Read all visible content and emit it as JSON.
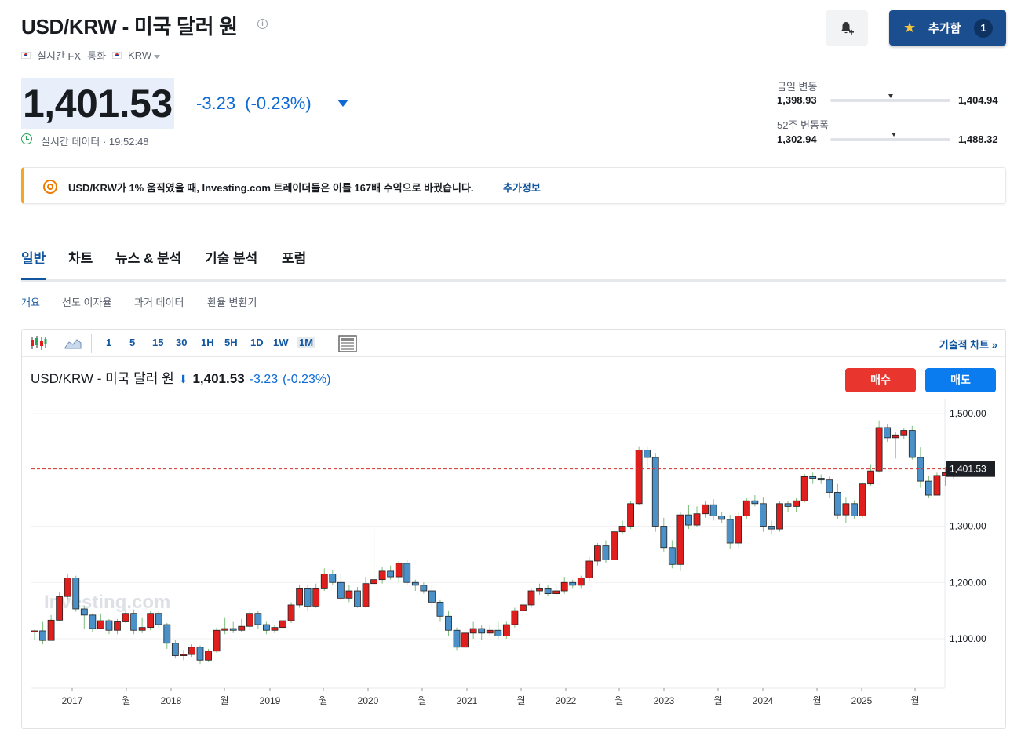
{
  "header": {
    "title": "USD/KRW - 미국 달러 원",
    "info_icon": "i",
    "realtime_fx": "실시간 FX",
    "currency_label": "통화",
    "currency_code": "KRW",
    "watch_label": "추가함",
    "watch_count": "1"
  },
  "quote": {
    "price": "1,401.53",
    "change": "-3.23",
    "change_pct": "(-0.23%)",
    "realtime_text": "실시간 데이터 · 19:52:48"
  },
  "ranges": {
    "day_label": "금일 변동",
    "day_low": "1,398.93",
    "day_high": "1,404.94",
    "day_position": 0.5,
    "week52_label": "52주 변동폭",
    "week52_low": "1,302.94",
    "week52_high": "1,488.32",
    "week52_position": 0.53
  },
  "banner": {
    "text": "USD/KRW가 1% 움직였을 때, Investing.com 트레이더들은 이를 167배 수익으로 바꿨습니다.",
    "link": "추가정보"
  },
  "tabs": [
    "일반",
    "차트",
    "뉴스 & 분석",
    "기술 분석",
    "포럼"
  ],
  "subtabs": [
    "개요",
    "선도 이자율",
    "과거 데이터",
    "환율 변환기"
  ],
  "toolbar": {
    "intervals": [
      "1",
      "5",
      "15",
      "30",
      "1H",
      "5H",
      "1D",
      "1W",
      "1M"
    ],
    "active_interval": "1M",
    "tech_chart_link": "기술적 차트 »"
  },
  "legend": {
    "name": "USD/KRW - 미국 달러 원",
    "price": "1,401.53",
    "change": "-3.23",
    "change_pct": "(-0.23%)"
  },
  "trade": {
    "buy": "매수",
    "sell": "매도"
  },
  "watermark": "Investing.com",
  "colors": {
    "up": "#e01e1e",
    "down": "#4a90c9",
    "accent": "#1256a0",
    "price_line": "#d23030"
  },
  "chart_data": {
    "type": "candlestick",
    "interval": "1M",
    "y_ticks": [
      "1,500.00",
      "1,300.00",
      "1,200.00",
      "1,100.00"
    ],
    "y_tick_values": [
      1500,
      1300,
      1200,
      1100
    ],
    "ylim": [
      1035,
      1540
    ],
    "x_ticks": [
      "2017",
      "월",
      "2018",
      "월",
      "2019",
      "월",
      "2020",
      "월",
      "2021",
      "월",
      "2022",
      "월",
      "2023",
      "월",
      "2024",
      "월",
      "2025",
      "월"
    ],
    "last_price_label": "1,401.53",
    "last_price": 1401.53,
    "x_start": "2016-08",
    "candles": [
      [
        1112,
        1114,
        1098,
        1116
      ],
      [
        1114,
        1097,
        1090,
        1130
      ],
      [
        1097,
        1133,
        1097,
        1142
      ],
      [
        1133,
        1175,
        1132,
        1182
      ],
      [
        1175,
        1208,
        1170,
        1215
      ],
      [
        1208,
        1153,
        1148,
        1212
      ],
      [
        1153,
        1142,
        1118,
        1158
      ],
      [
        1142,
        1118,
        1112,
        1145
      ],
      [
        1118,
        1132,
        1118,
        1145
      ],
      [
        1132,
        1115,
        1108,
        1135
      ],
      [
        1115,
        1130,
        1108,
        1135
      ],
      [
        1130,
        1145,
        1128,
        1152
      ],
      [
        1145,
        1115,
        1108,
        1152
      ],
      [
        1115,
        1120,
        1110,
        1138
      ],
      [
        1120,
        1145,
        1115,
        1150
      ],
      [
        1145,
        1125,
        1120,
        1150
      ],
      [
        1125,
        1092,
        1082,
        1128
      ],
      [
        1092,
        1070,
        1065,
        1098
      ],
      [
        1070,
        1072,
        1062,
        1080
      ],
      [
        1072,
        1085,
        1068,
        1090
      ],
      [
        1085,
        1062,
        1055,
        1088
      ],
      [
        1062,
        1078,
        1060,
        1082
      ],
      [
        1078,
        1115,
        1075,
        1120
      ],
      [
        1115,
        1118,
        1108,
        1138
      ],
      [
        1118,
        1115,
        1110,
        1130
      ],
      [
        1115,
        1122,
        1112,
        1135
      ],
      [
        1122,
        1145,
        1115,
        1150
      ],
      [
        1145,
        1125,
        1118,
        1150
      ],
      [
        1125,
        1115,
        1108,
        1130
      ],
      [
        1115,
        1120,
        1110,
        1125
      ],
      [
        1120,
        1132,
        1115,
        1135
      ],
      [
        1132,
        1160,
        1128,
        1165
      ],
      [
        1160,
        1190,
        1155,
        1195
      ],
      [
        1190,
        1158,
        1150,
        1195
      ],
      [
        1158,
        1190,
        1155,
        1198
      ],
      [
        1190,
        1215,
        1185,
        1225
      ],
      [
        1215,
        1200,
        1195,
        1222
      ],
      [
        1200,
        1172,
        1168,
        1215
      ],
      [
        1172,
        1185,
        1165,
        1195
      ],
      [
        1185,
        1157,
        1155,
        1192
      ],
      [
        1157,
        1198,
        1155,
        1210
      ],
      [
        1198,
        1205,
        1195,
        1295
      ],
      [
        1205,
        1220,
        1198,
        1228
      ],
      [
        1220,
        1210,
        1205,
        1230
      ],
      [
        1210,
        1234,
        1200,
        1238
      ],
      [
        1234,
        1200,
        1195,
        1240
      ],
      [
        1200,
        1195,
        1185,
        1205
      ],
      [
        1195,
        1185,
        1180,
        1200
      ],
      [
        1185,
        1165,
        1155,
        1195
      ],
      [
        1165,
        1140,
        1130,
        1170
      ],
      [
        1140,
        1115,
        1105,
        1150
      ],
      [
        1115,
        1085,
        1080,
        1120
      ],
      [
        1085,
        1110,
        1082,
        1120
      ],
      [
        1110,
        1118,
        1100,
        1130
      ],
      [
        1118,
        1110,
        1098,
        1125
      ],
      [
        1110,
        1115,
        1105,
        1125
      ],
      [
        1115,
        1105,
        1100,
        1130
      ],
      [
        1105,
        1125,
        1100,
        1130
      ],
      [
        1125,
        1150,
        1120,
        1155
      ],
      [
        1150,
        1160,
        1140,
        1165
      ],
      [
        1160,
        1185,
        1155,
        1190
      ],
      [
        1185,
        1190,
        1178,
        1198
      ],
      [
        1190,
        1180,
        1175,
        1195
      ],
      [
        1180,
        1185,
        1175,
        1195
      ],
      [
        1185,
        1200,
        1180,
        1210
      ],
      [
        1200,
        1195,
        1190,
        1205
      ],
      [
        1195,
        1208,
        1190,
        1212
      ],
      [
        1208,
        1238,
        1202,
        1245
      ],
      [
        1238,
        1265,
        1230,
        1270
      ],
      [
        1265,
        1240,
        1235,
        1275
      ],
      [
        1240,
        1290,
        1238,
        1295
      ],
      [
        1290,
        1300,
        1285,
        1310
      ],
      [
        1300,
        1340,
        1295,
        1345
      ],
      [
        1340,
        1435,
        1338,
        1442
      ],
      [
        1435,
        1422,
        1405,
        1442
      ],
      [
        1422,
        1300,
        1290,
        1430
      ],
      [
        1300,
        1262,
        1255,
        1315
      ],
      [
        1262,
        1232,
        1225,
        1275
      ],
      [
        1232,
        1320,
        1220,
        1325
      ],
      [
        1320,
        1302,
        1295,
        1338
      ],
      [
        1302,
        1322,
        1298,
        1335
      ],
      [
        1322,
        1338,
        1315,
        1345
      ],
      [
        1338,
        1318,
        1310,
        1348
      ],
      [
        1318,
        1312,
        1305,
        1325
      ],
      [
        1312,
        1270,
        1260,
        1320
      ],
      [
        1270,
        1318,
        1262,
        1325
      ],
      [
        1318,
        1345,
        1312,
        1350
      ],
      [
        1345,
        1340,
        1335,
        1355
      ],
      [
        1340,
        1300,
        1290,
        1352
      ],
      [
        1300,
        1295,
        1285,
        1310
      ],
      [
        1295,
        1340,
        1290,
        1345
      ],
      [
        1340,
        1335,
        1325,
        1345
      ],
      [
        1335,
        1345,
        1325,
        1350
      ],
      [
        1345,
        1388,
        1342,
        1393
      ],
      [
        1388,
        1385,
        1375,
        1395
      ],
      [
        1385,
        1382,
        1375,
        1392
      ],
      [
        1382,
        1360,
        1350,
        1388
      ],
      [
        1360,
        1320,
        1312,
        1375
      ],
      [
        1320,
        1340,
        1305,
        1352
      ],
      [
        1340,
        1318,
        1312,
        1346
      ],
      [
        1318,
        1375,
        1315,
        1378
      ],
      [
        1375,
        1398,
        1372,
        1410
      ],
      [
        1398,
        1475,
        1395,
        1488
      ],
      [
        1475,
        1457,
        1450,
        1482
      ],
      [
        1457,
        1462,
        1420,
        1468
      ],
      [
        1462,
        1470,
        1455,
        1475
      ],
      [
        1470,
        1422,
        1418,
        1478
      ],
      [
        1422,
        1380,
        1368,
        1440
      ],
      [
        1380,
        1355,
        1350,
        1390
      ],
      [
        1355,
        1390,
        1355,
        1395
      ],
      [
        1390,
        1395,
        1372,
        1405
      ],
      [
        1395,
        1401.53,
        1385,
        1405
      ]
    ]
  }
}
